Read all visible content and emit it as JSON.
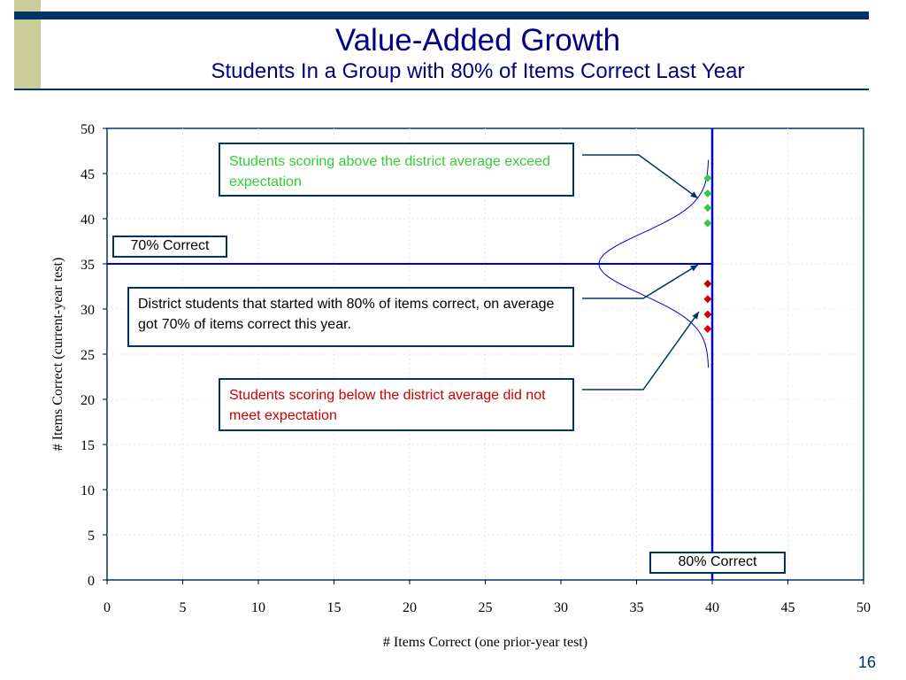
{
  "slide": {
    "title": "Value-Added Growth",
    "subtitle": "Students In a Group with 80% of Items Correct Last Year",
    "page_number": "16"
  },
  "callouts": {
    "above": "Students scoring above the district average exceed expectation",
    "middle": "District students that started with 80% of items correct, on average got 70% of items correct this year.",
    "below": "Students scoring below the district average did not meet expectation"
  },
  "labels": {
    "seventy": "70% Correct",
    "eighty": "80% Correct"
  },
  "colors": {
    "above": "#33cc33",
    "below": "#cc0000",
    "reference_line": "#0000cc",
    "frame": "#003366",
    "curve": "#0000cc"
  },
  "chart_data": {
    "type": "scatter",
    "xlabel": "# Items Correct (one prior-year test)",
    "ylabel": "# Items Correct (current-year test)",
    "xlim": [
      0,
      50
    ],
    "ylim": [
      0,
      50
    ],
    "xticks": [
      0,
      5,
      10,
      15,
      20,
      25,
      30,
      35,
      40,
      45,
      50
    ],
    "yticks": [
      0,
      5,
      10,
      15,
      20,
      25,
      30,
      35,
      40,
      45,
      50
    ],
    "grid": true,
    "reference_lines": {
      "vertical_x": 40,
      "horizontal_y": 35
    },
    "series": [
      {
        "points": [
          [
            39.7,
            44.5
          ],
          [
            39.7,
            42.8
          ],
          [
            39.7,
            41.2
          ],
          [
            39.7,
            39.5
          ]
        ]
      },
      {
        "points": [
          [
            39.7,
            32.8
          ],
          [
            39.7,
            31.1
          ],
          [
            39.7,
            29.4
          ],
          [
            39.7,
            27.8
          ]
        ]
      }
    ],
    "distribution_curve": {
      "mean": 35,
      "sd": 3.4,
      "y_range": [
        23.5,
        46.5
      ]
    }
  }
}
